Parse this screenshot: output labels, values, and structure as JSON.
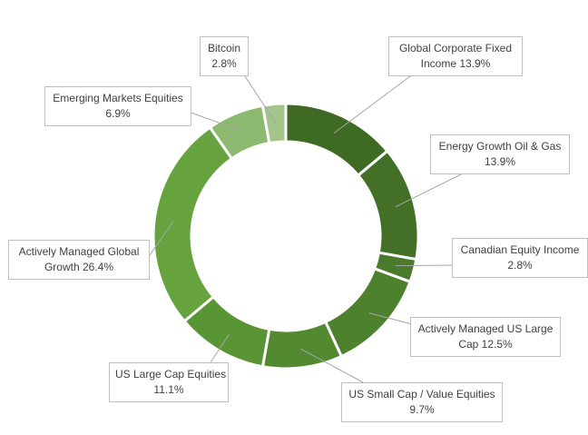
{
  "chart_data": {
    "type": "pie",
    "variant": "doughnut",
    "title": "",
    "slices": [
      {
        "label": "Global Corporate Fixed Income",
        "value": 13.9,
        "value_label": "13.9%",
        "color": "#3f6a24"
      },
      {
        "label": "Energy Growth Oil & Gas",
        "value": 13.9,
        "value_label": "13.9%",
        "color": "#436f27"
      },
      {
        "label": "Canadian Equity Income",
        "value": 2.8,
        "value_label": "2.8%",
        "color": "#4a7a2b"
      },
      {
        "label": "Actively Managed US Large Cap",
        "value": 12.5,
        "value_label": "12.5%",
        "color": "#4e812e"
      },
      {
        "label": "US Small Cap / Value Equities",
        "value": 9.7,
        "value_label": "9.7%",
        "color": "#538a31"
      },
      {
        "label": "US Large Cap Equities",
        "value": 11.1,
        "value_label": "11.1%",
        "color": "#599435"
      },
      {
        "label": "Actively Managed Global Growth",
        "value": 26.4,
        "value_label": "26.4%",
        "color": "#66a33e"
      },
      {
        "label": "Emerging Markets Equities",
        "value": 6.9,
        "value_label": "6.9%",
        "color": "#8db870"
      },
      {
        "label": "Bitcoin",
        "value": 2.8,
        "value_label": "2.8%",
        "color": "#a3c58b"
      }
    ],
    "legend": "none",
    "data_labels": "callouts with leader lines"
  },
  "callouts": [
    {
      "line1": "Global Corporate Fixed",
      "line2": "Income 13.9%"
    },
    {
      "line1": "Energy Growth Oil & Gas",
      "line2": "13.9%"
    },
    {
      "line1": "Canadian Equity Income",
      "line2": "2.8%"
    },
    {
      "line1": "Actively Managed US Large",
      "line2": "Cap 12.5%"
    },
    {
      "line1": "US Small Cap / Value Equities",
      "line2": "9.7%"
    },
    {
      "line1": "US Large Cap Equities",
      "line2": "11.1%"
    },
    {
      "line1": "Actively Managed Global",
      "line2": "Growth 26.4%"
    },
    {
      "line1": "Emerging Markets Equities",
      "line2": "6.9%"
    },
    {
      "line1": "Bitcoin",
      "line2": "2.8%"
    }
  ]
}
